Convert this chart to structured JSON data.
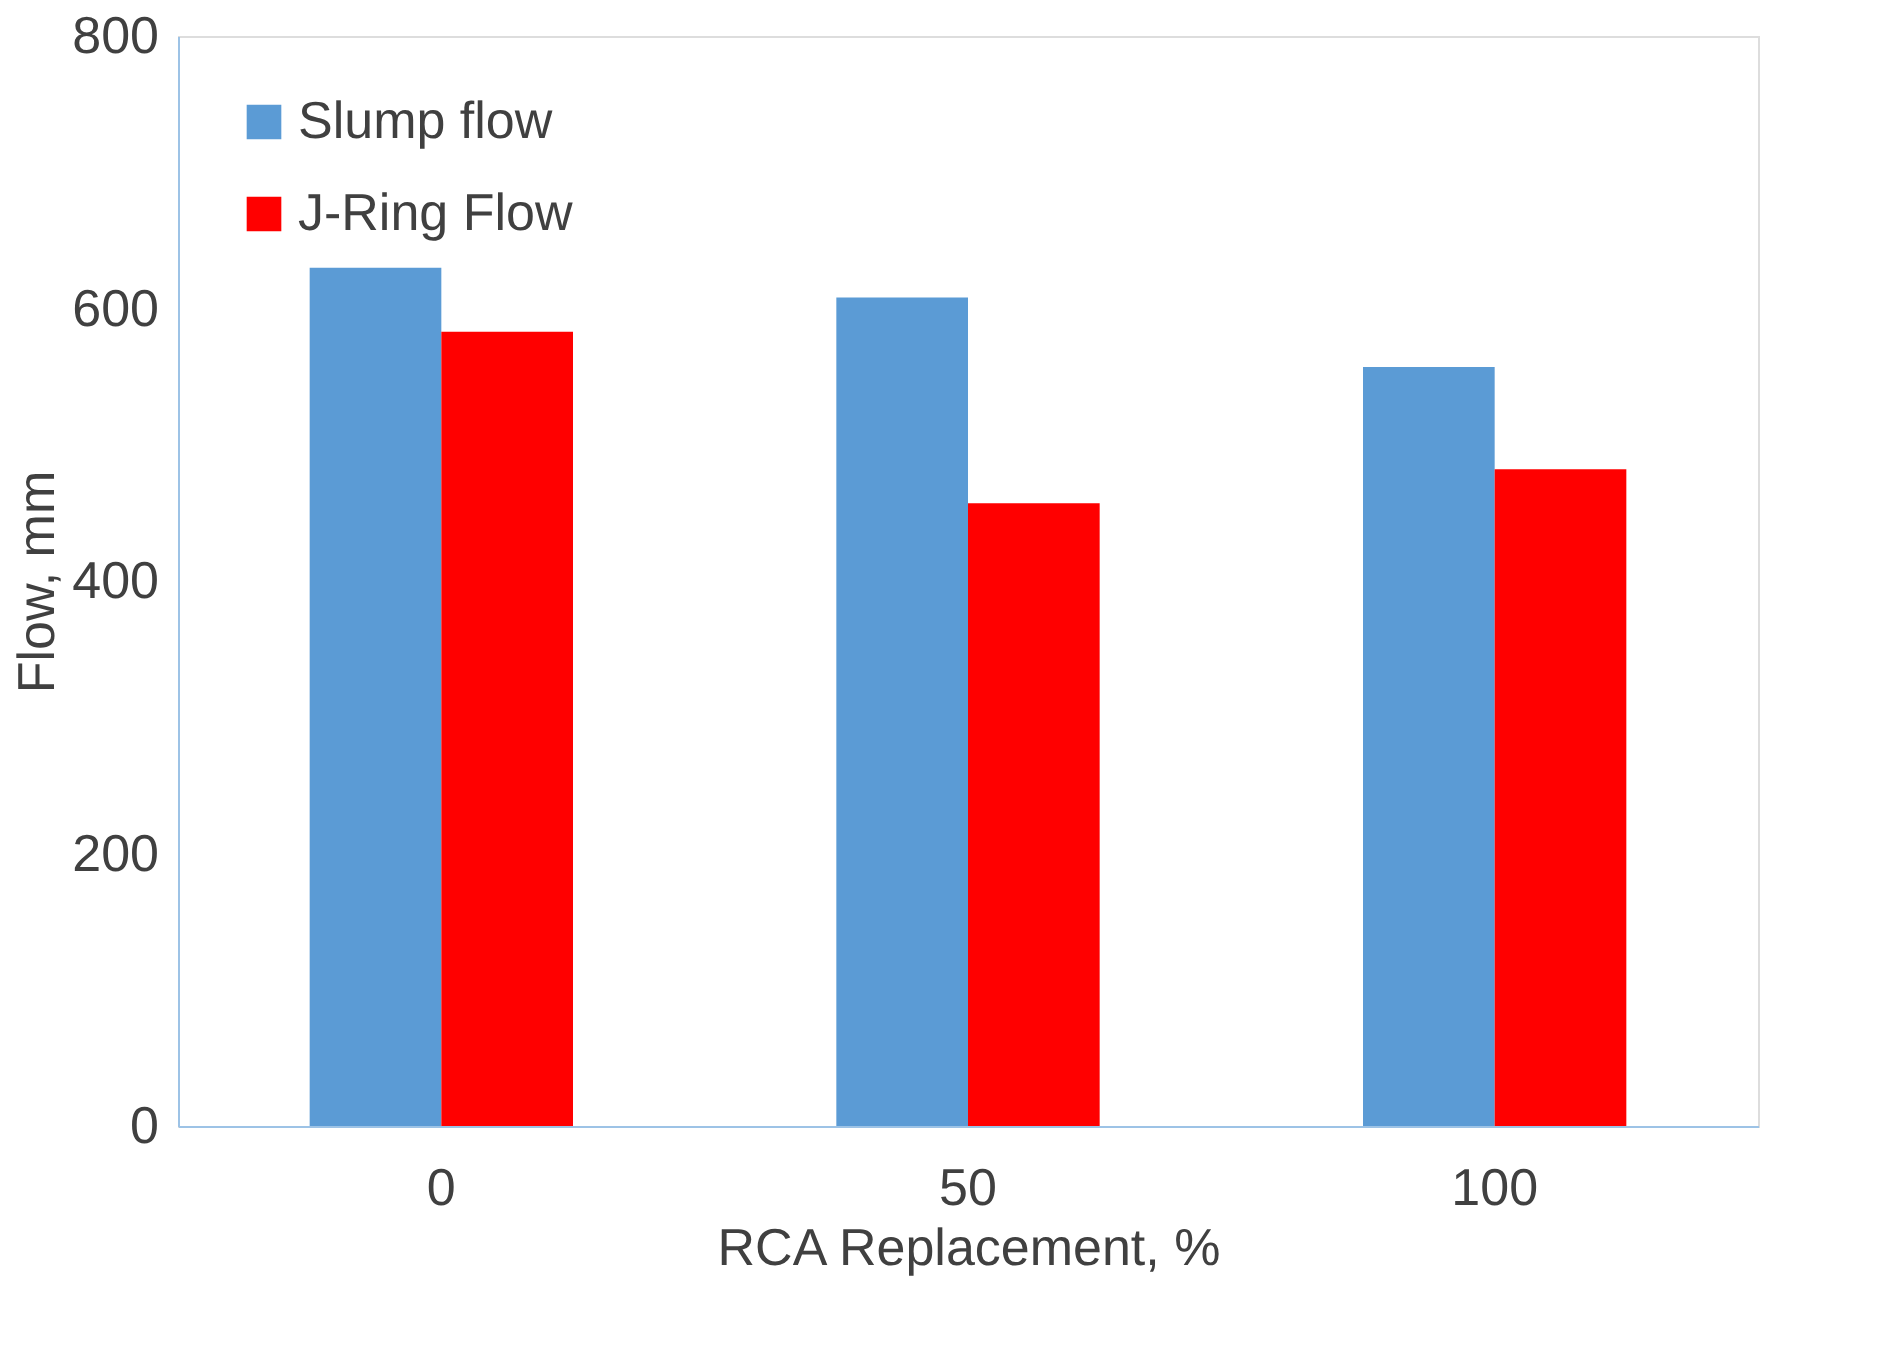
{
  "chart_data": {
    "type": "bar",
    "xlabel": "RCA Replacement, %",
    "ylabel": "Flow, mm",
    "categories": [
      "0",
      "50",
      "100"
    ],
    "series": [
      {
        "name": "Slump flow",
        "color": "#5b9bd5",
        "values": [
          630,
          608,
          557
        ]
      },
      {
        "name": "J-Ring Flow",
        "color": "#ff0000",
        "values": [
          583,
          457,
          482
        ]
      }
    ],
    "ylim": [
      0,
      800
    ],
    "yticks": [
      0,
      200,
      400,
      600,
      800
    ],
    "grid": false,
    "legend": "top left"
  }
}
